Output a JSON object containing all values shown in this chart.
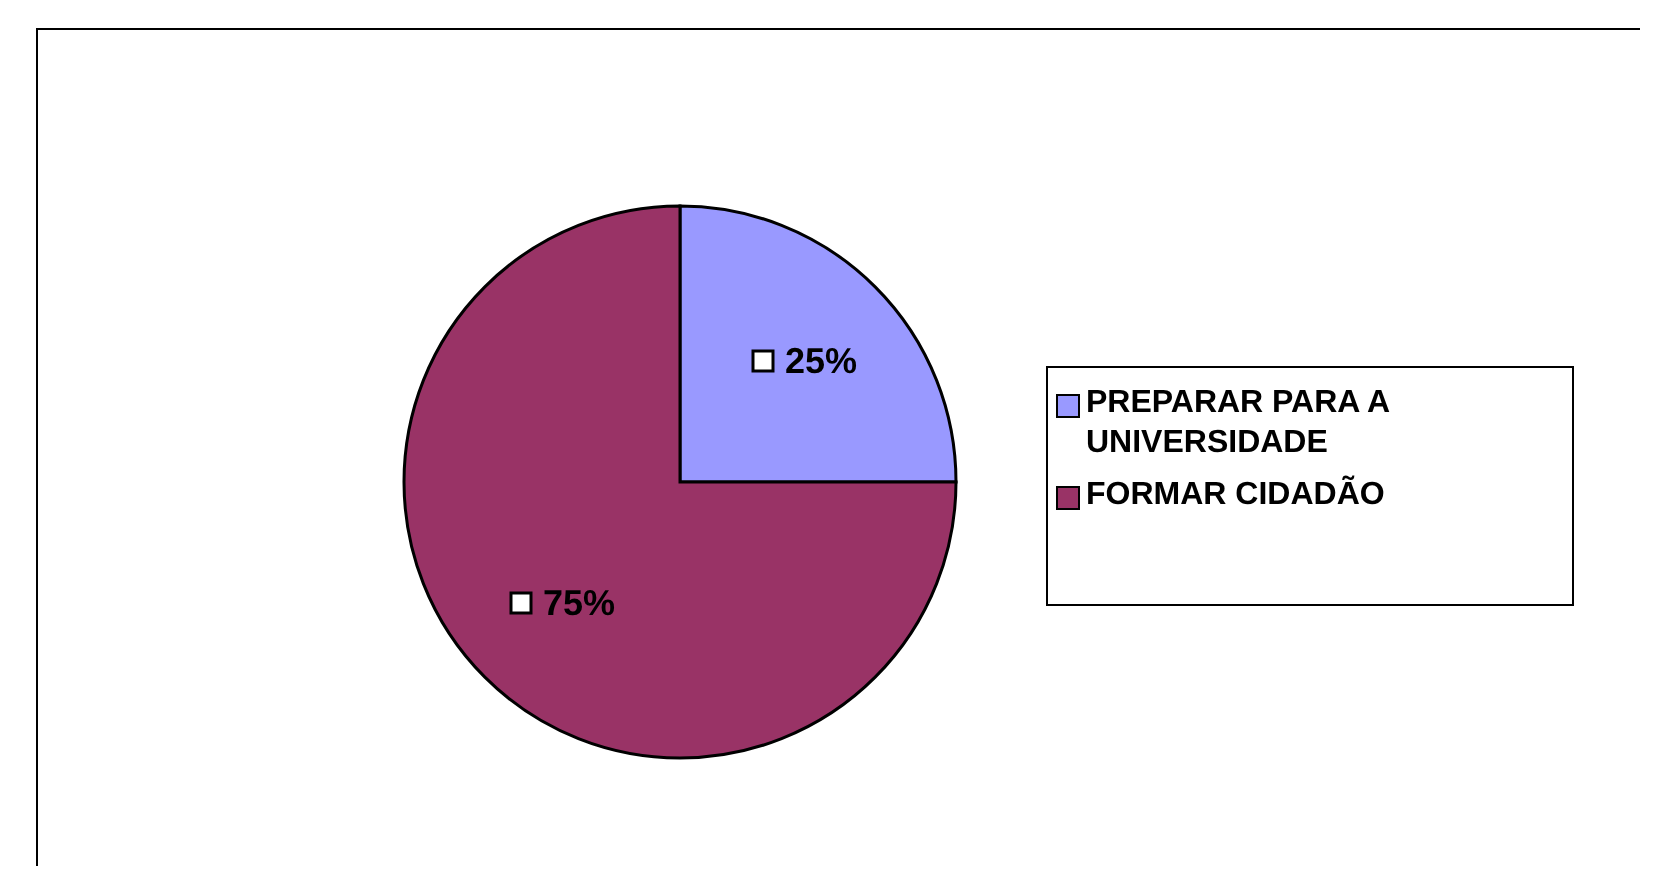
{
  "chart_data": {
    "type": "pie",
    "categories": [
      "PREPARAR PARA A UNIVERSIDADE",
      "FORMAR CIDADÃO"
    ],
    "values": [
      25,
      75
    ],
    "colors": [
      "#9999ff",
      "#993366"
    ],
    "value_labels": [
      "25%",
      "75%"
    ],
    "legend": "right"
  }
}
